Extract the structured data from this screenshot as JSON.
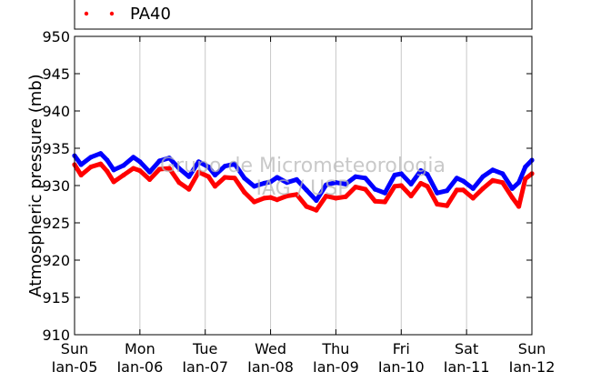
{
  "chart_data": {
    "type": "line",
    "ylabel": "Atmospheric pressure (mb)",
    "xlabel": "",
    "ylim": [
      910,
      950
    ],
    "xlim": [
      0,
      7
    ],
    "yticks": [
      910,
      915,
      920,
      925,
      930,
      935,
      940,
      945,
      950
    ],
    "xticks": [
      {
        "day": "Sun",
        "date": "Jan-05"
      },
      {
        "day": "Mon",
        "date": "Jan-06"
      },
      {
        "day": "Tue",
        "date": "Jan-07"
      },
      {
        "day": "Wed",
        "date": "Jan-08"
      },
      {
        "day": "Thu",
        "date": "Jan-09"
      },
      {
        "day": "Fri",
        "date": "Jan-10"
      },
      {
        "day": "Sat",
        "date": "Jan-11"
      },
      {
        "day": "Sun",
        "date": "Jan-12"
      }
    ],
    "grid": "vertical",
    "legend": {
      "position": "top",
      "visible_entries": [
        "PA40"
      ]
    },
    "watermark": [
      "Grupo de Micrometeorologia",
      "IAG / USP"
    ],
    "series": [
      {
        "color": "#0000ff",
        "x": [
          0.0,
          0.1,
          0.25,
          0.4,
          0.5,
          0.6,
          0.75,
          0.9,
          1.0,
          1.15,
          1.3,
          1.45,
          1.6,
          1.75,
          1.9,
          2.05,
          2.15,
          2.3,
          2.45,
          2.6,
          2.75,
          2.9,
          3.0,
          3.1,
          3.25,
          3.4,
          3.55,
          3.7,
          3.85,
          4.0,
          4.15,
          4.3,
          4.45,
          4.6,
          4.75,
          4.9,
          5.0,
          5.15,
          5.3,
          5.4,
          5.55,
          5.7,
          5.85,
          5.95,
          6.1,
          6.25,
          6.4,
          6.55,
          6.7,
          6.8,
          6.9,
          7.0
        ],
        "y": [
          934,
          932.8,
          933.8,
          934.3,
          933.4,
          932.1,
          932.7,
          933.8,
          933.2,
          931.8,
          933.3,
          933.7,
          932.3,
          931.2,
          933.2,
          932.5,
          931.4,
          932.6,
          932.9,
          931.0,
          929.9,
          930.3,
          930.5,
          931.1,
          930.4,
          930.8,
          929.4,
          928.0,
          930.1,
          930.4,
          930.2,
          931.2,
          931.0,
          929.5,
          929.0,
          931.4,
          931.6,
          930.2,
          932.0,
          931.5,
          929.0,
          929.3,
          931.0,
          930.6,
          929.6,
          931.2,
          932.1,
          931.6,
          929.6,
          930.4,
          932.5,
          933.4
        ]
      },
      {
        "color": "#ff0000",
        "x": [
          0.0,
          0.1,
          0.25,
          0.4,
          0.5,
          0.6,
          0.75,
          0.9,
          1.0,
          1.15,
          1.3,
          1.45,
          1.6,
          1.75,
          1.9,
          2.05,
          2.15,
          2.3,
          2.45,
          2.6,
          2.75,
          2.9,
          3.0,
          3.1,
          3.25,
          3.4,
          3.55,
          3.7,
          3.85,
          4.0,
          4.15,
          4.3,
          4.45,
          4.6,
          4.75,
          4.9,
          5.0,
          5.15,
          5.3,
          5.4,
          5.55,
          5.7,
          5.85,
          5.95,
          6.1,
          6.25,
          6.4,
          6.55,
          6.7,
          6.8,
          6.9,
          7.0
        ],
        "y": [
          932.8,
          931.4,
          932.5,
          932.9,
          931.9,
          930.5,
          931.4,
          932.3,
          932.0,
          930.8,
          932.2,
          932.3,
          930.4,
          929.5,
          931.8,
          931.2,
          929.9,
          931.1,
          931.0,
          929.1,
          927.8,
          928.3,
          928.4,
          928.1,
          928.6,
          928.8,
          927.2,
          926.7,
          928.6,
          928.3,
          928.5,
          929.8,
          929.5,
          927.9,
          927.8,
          929.9,
          930.0,
          928.6,
          930.3,
          929.9,
          927.5,
          927.3,
          929.4,
          929.4,
          928.3,
          929.6,
          930.7,
          930.4,
          928.4,
          927.2,
          930.9,
          931.6
        ]
      }
    ]
  }
}
